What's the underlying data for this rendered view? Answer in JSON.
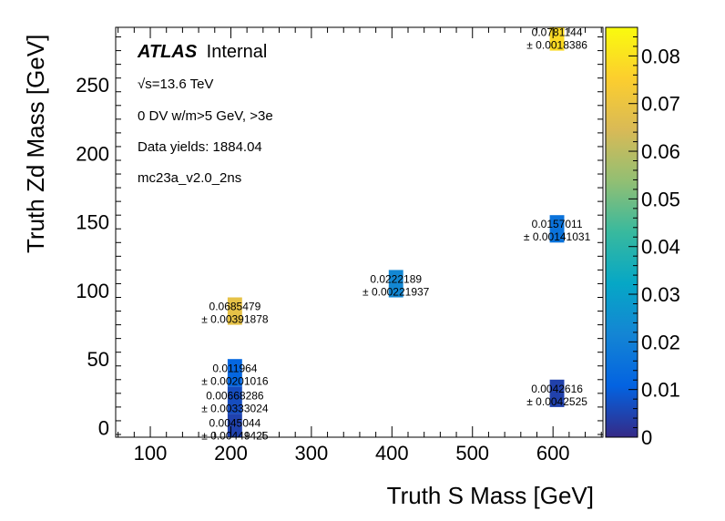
{
  "chart_data": {
    "type": "heatmap",
    "xlabel": "Truth S Mass [GeV]",
    "ylabel": "Truth Zd Mass [GeV]",
    "xlim": [
      57,
      662
    ],
    "ylim": [
      -7,
      292
    ],
    "x_ticks": [
      "100",
      "200",
      "300",
      "400",
      "500",
      "600"
    ],
    "y_ticks": [
      "0",
      "50",
      "100",
      "150",
      "200",
      "250"
    ],
    "colorbar": {
      "min": 0,
      "max": 0.086,
      "ticks": [
        "0",
        "0.01",
        "0.02",
        "0.03",
        "0.04",
        "0.05",
        "0.06",
        "0.07",
        "0.08"
      ]
    },
    "legend": {
      "atlas": "ATLAS",
      "status": "Internal",
      "sqrt_s": "√s=13.6 TeV",
      "selection": "0 DV w/m>5 GeV, >3e",
      "yields": "Data yields: 1884.04",
      "sample": "mc23a_v2.0_2ns"
    },
    "cells": [
      {
        "x": 205,
        "y": 0,
        "value": 0.0045044,
        "label": "0.0045044",
        "error": "± 0.00449425"
      },
      {
        "x": 205,
        "y": 20,
        "value": 0.00668286,
        "label": "0.00668286",
        "error": "± 0.00333024"
      },
      {
        "x": 205,
        "y": 40,
        "value": 0.011964,
        "label": "0.011964",
        "error": "± 0.00201016"
      },
      {
        "x": 205,
        "y": 85,
        "value": 0.0685479,
        "label": "0.0685479",
        "error": "± 0.00391878"
      },
      {
        "x": 405,
        "y": 105,
        "value": 0.0222189,
        "label": "0.0222189",
        "error": "± 0.00221937"
      },
      {
        "x": 605,
        "y": 145,
        "value": 0.0157011,
        "label": "0.0157011",
        "error": "± 0.00141031"
      },
      {
        "x": 605,
        "y": 285,
        "value": 0.0781144,
        "label": "0.0781144",
        "error": "± 0.0018386"
      },
      {
        "x": 605,
        "y": 25,
        "value": 0.0042616,
        "label": "0.0042616",
        "error": "± 0.0042525"
      }
    ]
  }
}
